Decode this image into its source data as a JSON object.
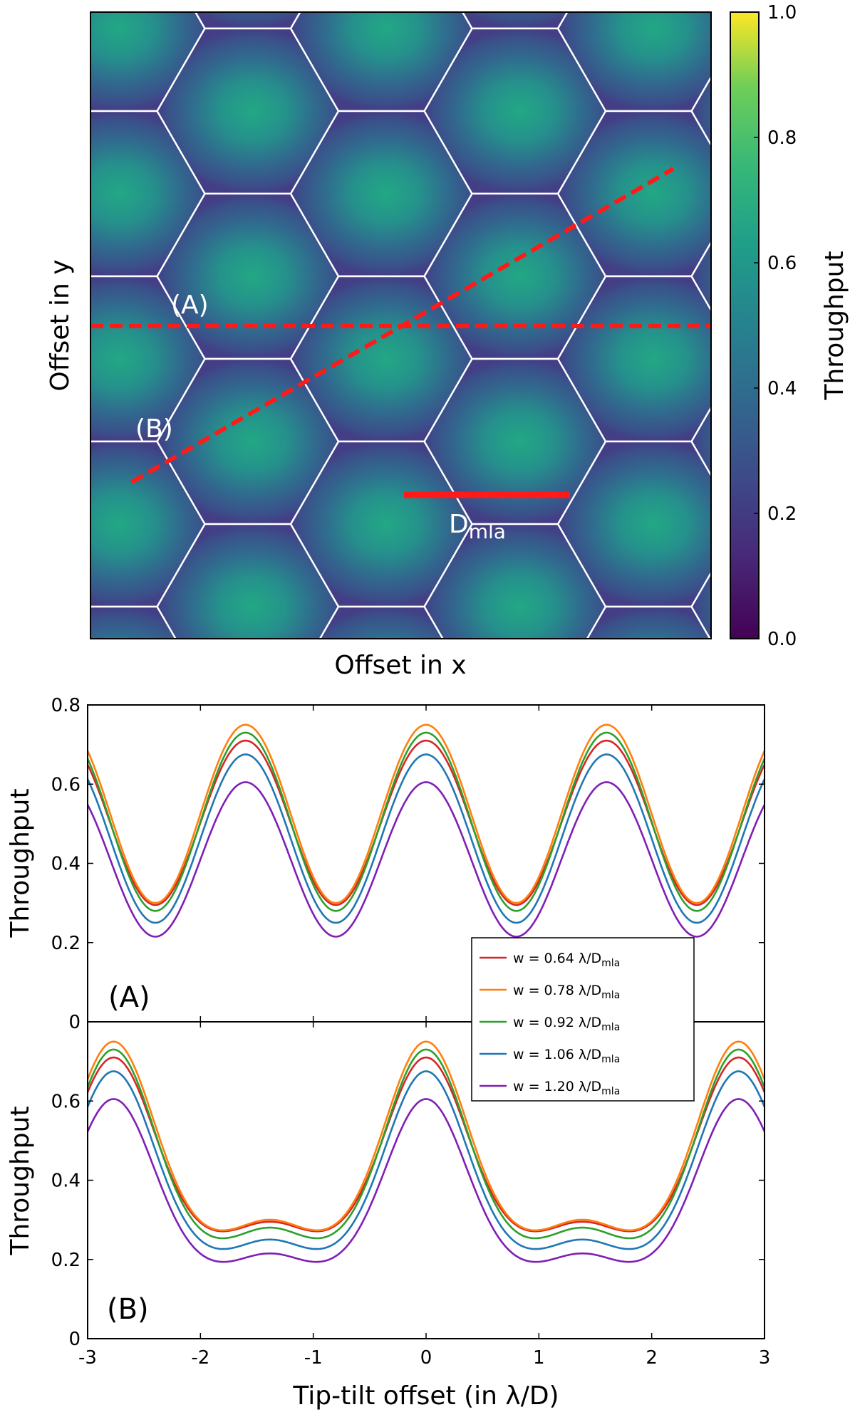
{
  "chart_data": [
    {
      "type": "heatmap",
      "title": "",
      "xlabel": "Offset in x",
      "ylabel": "Offset in y",
      "colorbar": {
        "label": "Throughput",
        "range": [
          0.0,
          1.0
        ],
        "ticks": [
          "0.0",
          "0.2",
          "0.4",
          "0.6",
          "0.8",
          "1.0"
        ],
        "colormap": "viridis"
      },
      "pattern": "hexagonal microlens array cells; peak throughput ~0.75 at cell centres, ~0.2 at edges",
      "annotations": {
        "cut_a": "(A)",
        "cut_b": "(B)",
        "scale_main": "D",
        "scale_sub": "mla"
      },
      "colors": {
        "cut_line": "#ff1a1a",
        "cell_border": "#ffffff"
      }
    },
    {
      "type": "line",
      "panel_label": "(A)",
      "xlabel": "",
      "ylabel": "Throughput",
      "xlim": [
        -3,
        3
      ],
      "ylim": [
        0,
        0.8
      ],
      "yticks": [
        "0",
        "0.2",
        "0.4",
        "0.6",
        "0.8"
      ],
      "profile": "cos",
      "period": 1.6,
      "series": [
        {
          "name": "w = 0.64 λ/D",
          "sub": "mla",
          "color": "#d62728",
          "peak": 0.71,
          "trough": 0.295
        },
        {
          "name": "w = 0.78 λ/D",
          "sub": "mla",
          "color": "#ff7f0e",
          "peak": 0.75,
          "trough": 0.3
        },
        {
          "name": "w = 0.92 λ/D",
          "sub": "mla",
          "color": "#2ca02c",
          "peak": 0.73,
          "trough": 0.28
        },
        {
          "name": "w = 1.06 λ/D",
          "sub": "mla",
          "color": "#1f77b4",
          "peak": 0.675,
          "trough": 0.25
        },
        {
          "name": "w = 1.20 λ/D",
          "sub": "mla",
          "color": "#7f1fb4",
          "peak": 0.605,
          "trough": 0.215
        }
      ]
    },
    {
      "type": "line",
      "panel_label": "(B)",
      "xlabel": "Tip-tilt offset (in λ/D)",
      "ylabel": "Throughput",
      "xlim": [
        -3,
        3
      ],
      "ylim": [
        0,
        0.8
      ],
      "xticks": [
        "-3",
        "-2",
        "-1",
        "0",
        "1",
        "2",
        "3"
      ],
      "yticks": [
        "0",
        "0.2",
        "0.4",
        "0.6"
      ],
      "profile": "double",
      "period": 2.77,
      "series": [
        {
          "name": "w = 0.64 λ/D",
          "sub": "mla",
          "color": "#d62728",
          "peak": 0.71,
          "valley": 0.245,
          "mid": 0.295
        },
        {
          "name": "w = 0.78 λ/D",
          "sub": "mla",
          "color": "#ff7f0e",
          "peak": 0.75,
          "valley": 0.245,
          "mid": 0.3
        },
        {
          "name": "w = 0.92 λ/D",
          "sub": "mla",
          "color": "#2ca02c",
          "peak": 0.73,
          "valley": 0.225,
          "mid": 0.28
        },
        {
          "name": "w = 1.06 λ/D",
          "sub": "mla",
          "color": "#1f77b4",
          "peak": 0.675,
          "valley": 0.2,
          "mid": 0.25
        },
        {
          "name": "w = 1.20 λ/D",
          "sub": "mla",
          "color": "#7f1fb4",
          "peak": 0.605,
          "valley": 0.17,
          "mid": 0.215
        }
      ]
    }
  ]
}
